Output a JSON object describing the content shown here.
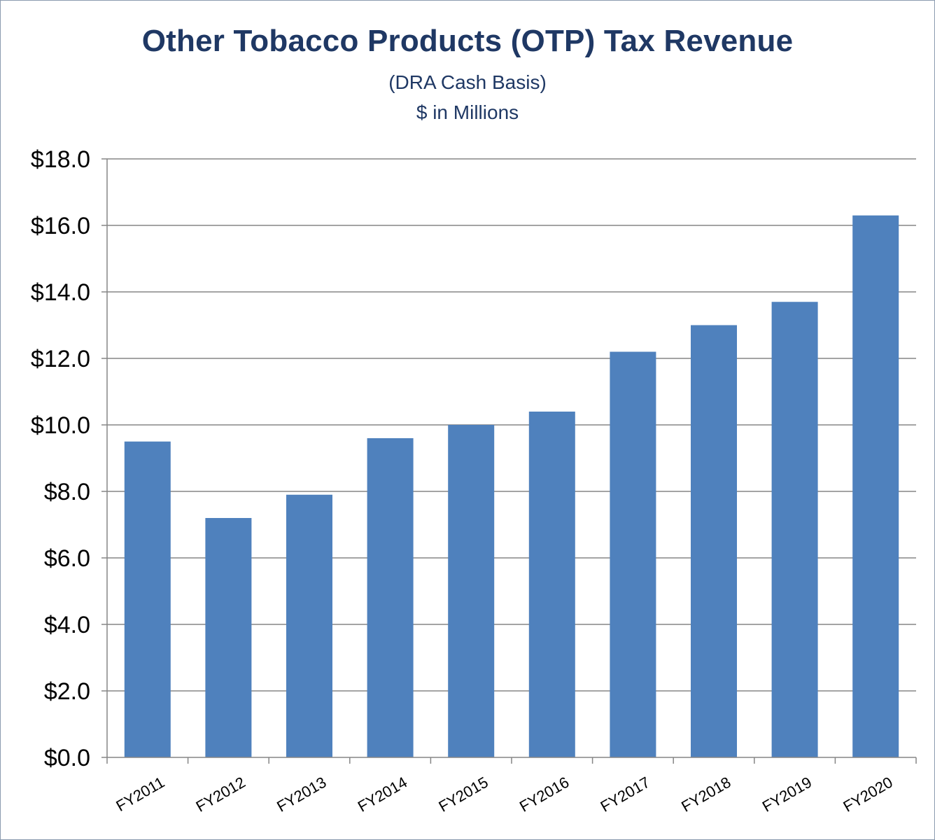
{
  "title": "Other Tobacco Products (OTP) Tax Revenue",
  "subtitle_line1": "(DRA Cash Basis)",
  "subtitle_line2": "$ in Millions",
  "colors": {
    "bar": "#4f81bd",
    "title": "#1f3864",
    "grid": "#868686",
    "frame": "#8c9bb0"
  },
  "chart_data": {
    "type": "bar",
    "title": "Other Tobacco Products (OTP) Tax Revenue",
    "subtitle": [
      "(DRA Cash Basis)",
      "$ in Millions"
    ],
    "categories": [
      "FY2011",
      "FY2012",
      "FY2013",
      "FY2014",
      "FY2015",
      "FY2016",
      "FY2017",
      "FY2018",
      "FY2019",
      "FY2020"
    ],
    "values": [
      9.5,
      7.2,
      7.9,
      9.6,
      10.0,
      10.4,
      12.2,
      13.0,
      13.7,
      16.3
    ],
    "ylim": [
      0,
      18
    ],
    "yticks": [
      0,
      2,
      4,
      6,
      8,
      10,
      12,
      14,
      16,
      18
    ],
    "ytick_labels": [
      "$0.0",
      "$2.0",
      "$4.0",
      "$6.0",
      "$8.0",
      "$10.0",
      "$12.0",
      "$14.0",
      "$16.0",
      "$18.0"
    ],
    "xlabel": "",
    "ylabel": "",
    "grid": true,
    "legend": "none"
  }
}
